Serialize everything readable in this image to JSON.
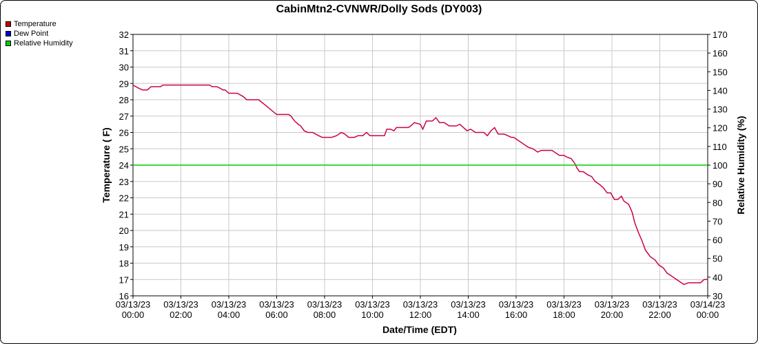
{
  "chart_data": {
    "type": "line",
    "title": "CabinMtn2-CVNWR/Dolly Sods (DY003)",
    "xlabel": "Date/Time (EDT)",
    "ylabel_left": "Temperature ( F)",
    "ylabel_right": "Relative Humidity (%)",
    "ylim_left": [
      16,
      32
    ],
    "ylim_right": [
      30,
      170
    ],
    "yticks_left": [
      "16",
      "17",
      "18",
      "19",
      "20",
      "21",
      "22",
      "23",
      "24",
      "25",
      "26",
      "27",
      "28",
      "29",
      "30",
      "31",
      "32"
    ],
    "yticks_right": [
      "30",
      "40",
      "50",
      "60",
      "70",
      "80",
      "90",
      "100",
      "110",
      "120",
      "130",
      "140",
      "150",
      "160",
      "170"
    ],
    "x_range_hours": [
      0,
      24
    ],
    "xticks": [
      {
        "hour": 0,
        "date": "03/13/23",
        "time": "00:00"
      },
      {
        "hour": 2,
        "date": "03/13/23",
        "time": "02:00"
      },
      {
        "hour": 4,
        "date": "03/13/23",
        "time": "04:00"
      },
      {
        "hour": 6,
        "date": "03/13/23",
        "time": "06:00"
      },
      {
        "hour": 8,
        "date": "03/13/23",
        "time": "08:00"
      },
      {
        "hour": 10,
        "date": "03/13/23",
        "time": "10:00"
      },
      {
        "hour": 12,
        "date": "03/13/23",
        "time": "12:00"
      },
      {
        "hour": 14,
        "date": "03/13/23",
        "time": "14:00"
      },
      {
        "hour": 16,
        "date": "03/13/23",
        "time": "16:00"
      },
      {
        "hour": 18,
        "date": "03/13/23",
        "time": "18:00"
      },
      {
        "hour": 20,
        "date": "03/13/23",
        "time": "20:00"
      },
      {
        "hour": 22,
        "date": "03/13/23",
        "time": "22:00"
      },
      {
        "hour": 24,
        "date": "03/14/23",
        "time": "00:00"
      }
    ],
    "grid": true,
    "legend_position": "top-left",
    "legend": [
      {
        "name": "Temperature",
        "color": "#cc0000"
      },
      {
        "name": "Dew Point",
        "color": "#0000cc"
      },
      {
        "name": "Relative Humidity",
        "color": "#00cc00"
      }
    ],
    "series": [
      {
        "name": "Temperature",
        "color": "#cc0044",
        "axis": "left",
        "points": [
          [
            0.0,
            28.9
          ],
          [
            0.25,
            28.7
          ],
          [
            0.4,
            28.6
          ],
          [
            0.6,
            28.6
          ],
          [
            0.75,
            28.8
          ],
          [
            1.0,
            28.8
          ],
          [
            1.15,
            28.8
          ],
          [
            1.25,
            28.9
          ],
          [
            1.5,
            28.9
          ],
          [
            2.0,
            28.9
          ],
          [
            2.5,
            28.9
          ],
          [
            3.0,
            28.9
          ],
          [
            3.2,
            28.9
          ],
          [
            3.3,
            28.8
          ],
          [
            3.5,
            28.8
          ],
          [
            3.65,
            28.7
          ],
          [
            3.75,
            28.6
          ],
          [
            3.85,
            28.6
          ],
          [
            4.0,
            28.4
          ],
          [
            4.15,
            28.4
          ],
          [
            4.35,
            28.4
          ],
          [
            4.6,
            28.2
          ],
          [
            4.75,
            28.0
          ],
          [
            5.0,
            28.0
          ],
          [
            5.25,
            28.0
          ],
          [
            5.5,
            27.7
          ],
          [
            6.0,
            27.1
          ],
          [
            6.3,
            27.1
          ],
          [
            6.5,
            27.1
          ],
          [
            6.6,
            27.0
          ],
          [
            6.75,
            26.7
          ],
          [
            6.9,
            26.5
          ],
          [
            7.0,
            26.4
          ],
          [
            7.15,
            26.1
          ],
          [
            7.3,
            26.0
          ],
          [
            7.5,
            26.0
          ],
          [
            7.75,
            25.8
          ],
          [
            7.9,
            25.7
          ],
          [
            8.1,
            25.7
          ],
          [
            8.3,
            25.7
          ],
          [
            8.5,
            25.8
          ],
          [
            8.7,
            26.0
          ],
          [
            8.85,
            25.9
          ],
          [
            9.0,
            25.7
          ],
          [
            9.25,
            25.7
          ],
          [
            9.4,
            25.8
          ],
          [
            9.6,
            25.8
          ],
          [
            9.75,
            26.0
          ],
          [
            9.9,
            25.8
          ],
          [
            10.0,
            25.8
          ],
          [
            10.25,
            25.8
          ],
          [
            10.4,
            25.8
          ],
          [
            10.5,
            25.8
          ],
          [
            10.6,
            26.2
          ],
          [
            10.75,
            26.2
          ],
          [
            10.9,
            26.1
          ],
          [
            11.0,
            26.3
          ],
          [
            11.25,
            26.3
          ],
          [
            11.5,
            26.3
          ],
          [
            11.6,
            26.4
          ],
          [
            11.75,
            26.6
          ],
          [
            12.0,
            26.5
          ],
          [
            12.1,
            26.2
          ],
          [
            12.25,
            26.7
          ],
          [
            12.5,
            26.7
          ],
          [
            12.65,
            26.9
          ],
          [
            12.8,
            26.6
          ],
          [
            13.0,
            26.6
          ],
          [
            13.2,
            26.4
          ],
          [
            13.5,
            26.4
          ],
          [
            13.65,
            26.5
          ],
          [
            13.8,
            26.3
          ],
          [
            13.95,
            26.1
          ],
          [
            14.1,
            26.2
          ],
          [
            14.3,
            26.0
          ],
          [
            14.5,
            26.0
          ],
          [
            14.65,
            26.0
          ],
          [
            14.8,
            25.8
          ],
          [
            14.95,
            26.1
          ],
          [
            15.1,
            26.3
          ],
          [
            15.25,
            25.9
          ],
          [
            15.5,
            25.9
          ],
          [
            15.65,
            25.8
          ],
          [
            15.8,
            25.7
          ],
          [
            15.9,
            25.7
          ],
          [
            16.2,
            25.4
          ],
          [
            16.5,
            25.1
          ],
          [
            16.7,
            25.0
          ],
          [
            16.9,
            24.8
          ],
          [
            17.05,
            24.9
          ],
          [
            17.25,
            24.9
          ],
          [
            17.5,
            24.9
          ],
          [
            17.7,
            24.7
          ],
          [
            17.8,
            24.6
          ],
          [
            18.0,
            24.6
          ],
          [
            18.1,
            24.5
          ],
          [
            18.3,
            24.4
          ],
          [
            18.45,
            24.1
          ],
          [
            18.55,
            23.8
          ],
          [
            18.65,
            23.6
          ],
          [
            18.8,
            23.6
          ],
          [
            19.0,
            23.4
          ],
          [
            19.15,
            23.3
          ],
          [
            19.3,
            23.0
          ],
          [
            19.5,
            22.8
          ],
          [
            19.65,
            22.6
          ],
          [
            19.8,
            22.3
          ],
          [
            19.95,
            22.3
          ],
          [
            20.1,
            21.9
          ],
          [
            20.25,
            21.9
          ],
          [
            20.4,
            22.1
          ],
          [
            20.5,
            21.8
          ],
          [
            20.7,
            21.6
          ],
          [
            20.85,
            21.1
          ],
          [
            20.95,
            20.5
          ],
          [
            21.1,
            19.9
          ],
          [
            21.25,
            19.4
          ],
          [
            21.4,
            18.8
          ],
          [
            21.6,
            18.4
          ],
          [
            21.8,
            18.2
          ],
          [
            21.95,
            17.9
          ],
          [
            22.15,
            17.7
          ],
          [
            22.3,
            17.4
          ],
          [
            22.5,
            17.2
          ],
          [
            22.7,
            17.0
          ],
          [
            22.9,
            16.8
          ],
          [
            23.0,
            16.7
          ],
          [
            23.2,
            16.8
          ],
          [
            23.5,
            16.8
          ],
          [
            23.7,
            16.8
          ],
          [
            23.85,
            17.0
          ],
          [
            24.0,
            17.0
          ],
          [
            24.15,
            16.9
          ],
          [
            24.3,
            16.9
          ]
        ]
      },
      {
        "name": "Relative Humidity",
        "color": "#00cc00",
        "axis": "right",
        "points": [
          [
            0,
            100
          ],
          [
            24.3,
            100
          ]
        ]
      }
    ]
  }
}
